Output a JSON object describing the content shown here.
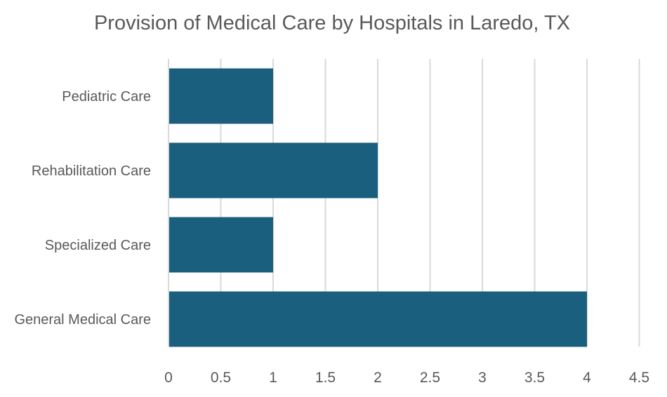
{
  "chart_data": {
    "type": "bar",
    "orientation": "horizontal",
    "title": "Provision of Medical Care by Hospitals in Laredo, TX",
    "xlabel": "",
    "ylabel": "",
    "categories": [
      "Pediatric Care",
      "Rehabilitation Care",
      "Specialized Care",
      "General Medical Care"
    ],
    "values": [
      1,
      2,
      1,
      4
    ],
    "xlim": [
      0,
      4.5
    ],
    "xticks": [
      "0",
      "0.5",
      "1",
      "1.5",
      "2",
      "2.5",
      "3",
      "3.5",
      "4",
      "4.5"
    ],
    "bar_color": "#1b5f7e",
    "grid": "vertical",
    "legend": "none"
  }
}
